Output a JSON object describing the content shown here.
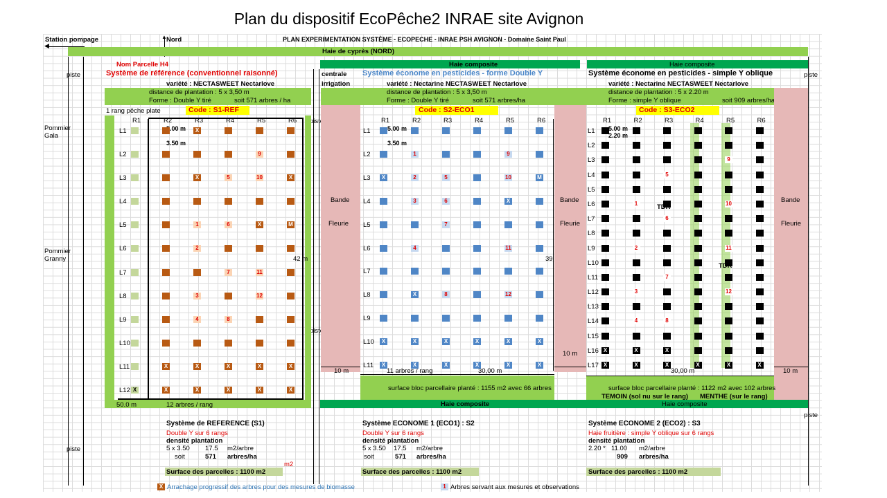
{
  "title": "Plan du dispositif EcoPêche2 INRAE site Avignon",
  "header": {
    "station": "Station pompage",
    "nord": "Nord",
    "plan": "PLAN EXPERIMENTATION SYSTÈME -  ECOPECHE - INRAE PSH AVIGNON - Domaine Saint Paul",
    "haie_cypres": "Haie de cyprès (NORD)"
  },
  "labels": {
    "piste": "piste",
    "centrale": "centrale",
    "irrigation": "irrigation",
    "pommier_gala": "Pommier Gala",
    "pommier_granny": "Pommier Granny",
    "bande": "Bande",
    "fleurie": "Fleurie",
    "haie_composite": "Haie composite",
    "rang_peche": "1 rang pêche plate",
    "dist_10": "10 m",
    "dist_42": "42 m",
    "dist_39": "39",
    "dist_50": "50.0 m",
    "arbres_rang": "12 arbres / rang",
    "dist_30": "30,00 m",
    "arbres_rang_11": "11 arbres / rang",
    "dist_500": "5.00 m",
    "dist_350": "3.50 m",
    "dist_220": "2.20 m",
    "tdr": "TDR",
    "temoin": "TEMOIN (sol nu sur le rang)",
    "menthe": "MENTHE (sur le rang)",
    "m2": "m2",
    "legend_x": "Arrachage progressif des arbres pour des mesures de biomasse",
    "legend_1": "Arbres servant aux mesures et observations",
    "x": "X",
    "one": "1"
  },
  "systems": [
    {
      "name": "Nom Parcelle H4",
      "title": "Système de référence (conventionnel raisonné)",
      "variete": "variété : NECTASWEET Nectarlove",
      "distance": "distance de plantation : 5 x 3,50 m",
      "forme": "Forme : Double Y tiré",
      "soit": "soit 571  arbres / ha",
      "code": "Code :  S1-REF",
      "surface": "",
      "summary_title": "Système de REFERENCE (S1)",
      "summary_form": "Double Y sur 6 rangs",
      "densite": "densité plantation",
      "d1": "5 x 3.50",
      "d2": "17.5",
      "d3": "m2/arbre",
      "soit_lbl": "soit",
      "d4": "571",
      "d5": "arbres/ha",
      "surface_parc": "Surface des parcelles : 1100 m2"
    },
    {
      "title": "Système économe en pesticides - forme Double Y",
      "variete": "variété : Nectarine NECTASWEET Nectarlove",
      "distance": "distance de plantation : 5 x 3,50 m",
      "forme": "Forme : Double Y tiré",
      "soit": "soit 571 arbres/ha",
      "code": "Code : S2-ECO1",
      "surface": "surface bloc parcellaire planté : 1155 m2 avec 66 arbres",
      "summary_title": "Système ECONOME 1  (ECO1) : S2",
      "summary_form": "Double  Y sur 6 rangs",
      "densite": "densité plantation",
      "d1": "5 x 3.50",
      "d2": "17.5",
      "d3": "m2/arbre",
      "soit_lbl": "soit",
      "d4": "571",
      "d5": "arbres/ha",
      "surface_parc": "Surface des parcelles : 1100 m2"
    },
    {
      "title": "Système économe en pesticides - simple Y oblique",
      "variete": "variété : Nectarine NECTASWEET Nectarlove",
      "distance": "distance de plantation : 5 x 2.20 m",
      "forme": "Forme : simple Y oblique",
      "soit": "soit 909 arbres/ha",
      "code": "Code : S3-ECO2",
      "surface": "surface bloc parcellaire planté : 1122 m2 avec 102 arbres",
      "summary_title": "Système ECONOME 2  (ECO2) : S3",
      "summary_form": "Haie fruitière : simple Y oblique sur 6 rangs",
      "densite": "densité plantation",
      "d1": "2.20 *",
      "d2": "11.00",
      "d3": "m2/arbre",
      "soit_lbl": "",
      "d4": "909",
      "d5": "arbres/ha",
      "surface_parc": "Surface des parcelles : 1100 m2"
    }
  ],
  "plots": [
    {
      "cols": [
        "R1",
        "R2",
        "R3",
        "R4",
        "R5",
        "R6"
      ],
      "rows": [
        "L1",
        "L2",
        "L3",
        "L4",
        "L5",
        "L6",
        "L7",
        "L8",
        "L9",
        "L10",
        "L11",
        "L12"
      ],
      "cells": [
        [
          "",
          "",
          "X",
          "",
          "",
          ""
        ],
        [
          "",
          "",
          "",
          "",
          "9",
          ""
        ],
        [
          "",
          "",
          "X",
          "5",
          "10",
          "X"
        ],
        [
          "",
          "",
          "",
          "",
          "",
          ""
        ],
        [
          "",
          "",
          "1",
          "6",
          "X",
          "M"
        ],
        [
          "",
          "",
          "2",
          "",
          "",
          ""
        ],
        [
          "",
          "",
          "",
          "7",
          "11",
          ""
        ],
        [
          "",
          "",
          "3",
          "",
          "12",
          ""
        ],
        [
          "",
          "",
          "4",
          "8",
          "",
          ""
        ],
        [
          "",
          "",
          "",
          "",
          "",
          ""
        ],
        [
          "",
          "X",
          "X",
          "X",
          "X",
          "X"
        ],
        [
          "X",
          "X",
          "X",
          "X",
          "X",
          "X"
        ]
      ]
    },
    {
      "cols": [
        "R1",
        "R2",
        "R3",
        "R4",
        "R5",
        "R6"
      ],
      "rows": [
        "L1",
        "L2",
        "L3",
        "L4",
        "L5",
        "L6",
        "L7",
        "L8",
        "L9",
        "L10",
        "L11"
      ],
      "cells": [
        [
          "",
          "",
          "",
          "",
          "",
          ""
        ],
        [
          "",
          "1",
          "",
          "",
          "9",
          ""
        ],
        [
          "X",
          "2",
          "5",
          "",
          "10",
          "M"
        ],
        [
          "",
          "3",
          "6",
          "",
          "X",
          ""
        ],
        [
          "",
          "",
          "7",
          "",
          "",
          ""
        ],
        [
          "",
          "4",
          "",
          "",
          "11",
          ""
        ],
        [
          "",
          "",
          "",
          "",
          "",
          ""
        ],
        [
          "",
          "X",
          "8",
          "",
          "12",
          ""
        ],
        [
          "",
          "",
          "",
          "",
          "",
          ""
        ],
        [
          "X",
          "X",
          "X",
          "X",
          "X",
          "X"
        ],
        [
          "X",
          "X",
          "X",
          "X",
          "X",
          "X"
        ]
      ]
    },
    {
      "cols": [
        "R1",
        "R2",
        "R3",
        "R4",
        "R5",
        "R6"
      ],
      "rows": [
        "L1",
        "L2",
        "L3",
        "L4",
        "L5",
        "L6",
        "L7",
        "L8",
        "L9",
        "L10",
        "L11",
        "L12",
        "L13",
        "L14",
        "L15",
        "L16",
        "L17"
      ],
      "cells": [
        [
          "",
          "",
          "",
          "",
          "",
          ""
        ],
        [
          "",
          "",
          "",
          "",
          "",
          ""
        ],
        [
          "",
          "",
          "",
          "",
          "9",
          ""
        ],
        [
          "",
          "",
          "5",
          "",
          "",
          ""
        ],
        [
          "",
          "",
          "",
          "",
          "",
          ""
        ],
        [
          "",
          "1",
          "",
          "",
          "10",
          ""
        ],
        [
          "",
          "",
          "6",
          "",
          "",
          ""
        ],
        [
          "",
          "",
          "",
          "",
          "",
          ""
        ],
        [
          "",
          "2",
          "",
          "",
          "11",
          ""
        ],
        [
          "",
          "",
          "",
          "",
          "",
          ""
        ],
        [
          "",
          "",
          "7",
          "",
          "",
          ""
        ],
        [
          "",
          "3",
          "",
          "",
          "12",
          ""
        ],
        [
          "",
          "",
          "",
          "",
          "",
          ""
        ],
        [
          "",
          "4",
          "8",
          "",
          "",
          ""
        ],
        [
          "",
          "",
          "",
          "",
          "",
          ""
        ],
        [
          "X",
          "X",
          "X",
          "",
          "",
          ""
        ],
        [
          "X",
          "X",
          "X",
          "X",
          "X",
          "X"
        ]
      ]
    }
  ]
}
